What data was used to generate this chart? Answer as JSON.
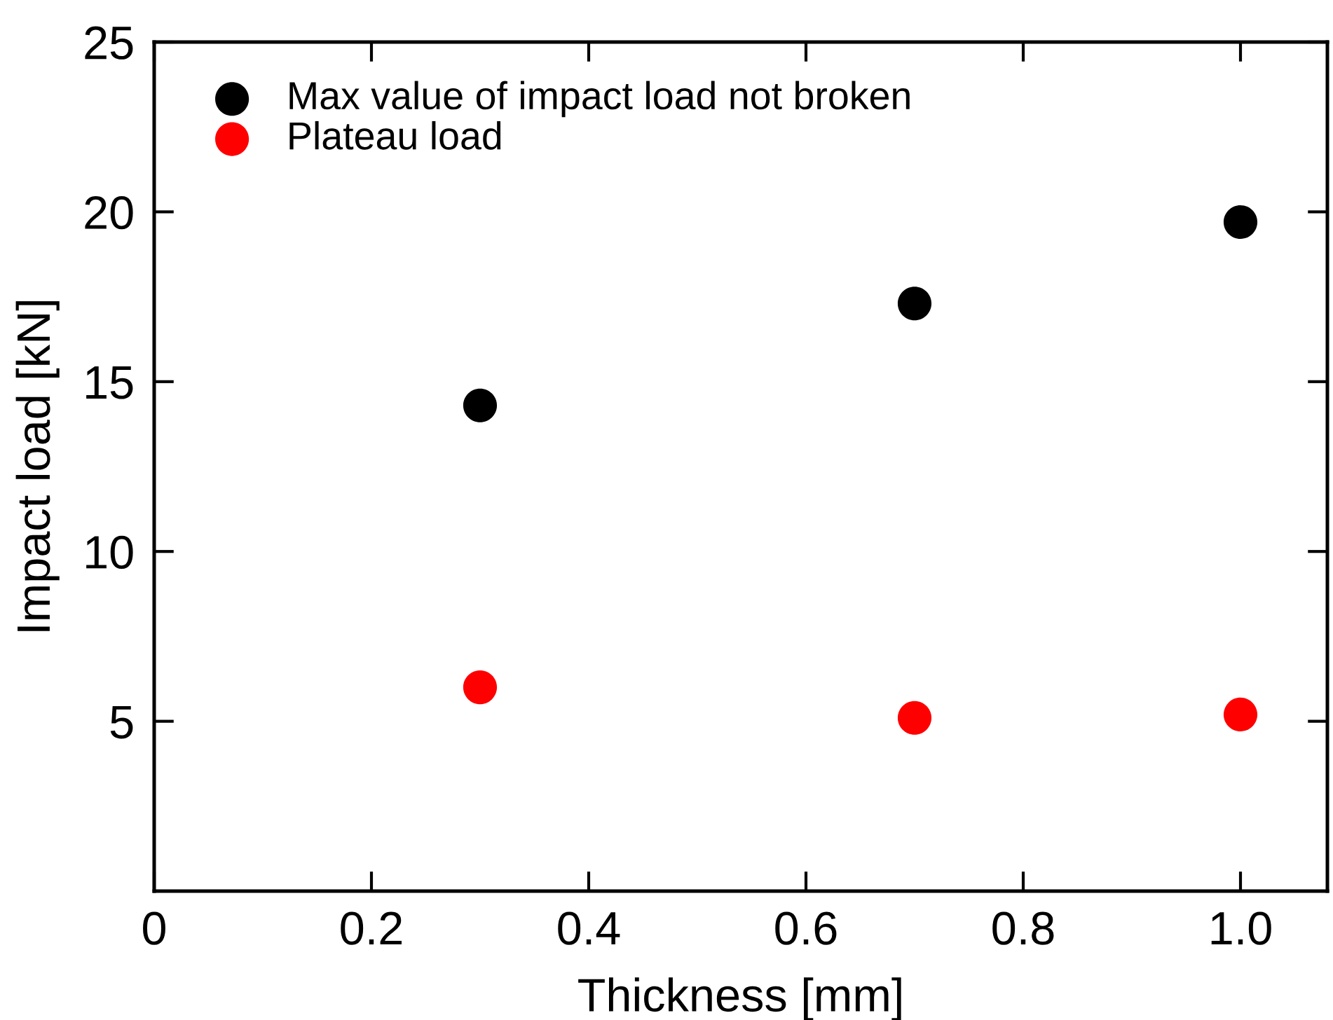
{
  "chart_data": {
    "type": "scatter",
    "xlabel": "Thickness [mm]",
    "ylabel": "Impact load [kN]",
    "x": [
      0.3,
      0.7,
      1.0
    ],
    "series": [
      {
        "name": "Max value of impact load not broken",
        "color": "#000000",
        "values": [
          14.3,
          17.3,
          19.7
        ]
      },
      {
        "name": "Plateau load",
        "color": "#ff0000",
        "values": [
          6.0,
          5.1,
          5.2
        ]
      }
    ],
    "xlim": [
      0,
      1.08
    ],
    "xticks": [
      0,
      0.2,
      0.4,
      0.6,
      0.8,
      {
        "value": 1.0,
        "label": "1.0"
      }
    ],
    "ylim": [
      0,
      25
    ],
    "yticks": [
      5,
      10,
      15,
      20,
      25
    ],
    "grid": false,
    "legend": "top left",
    "marker": "circle"
  }
}
